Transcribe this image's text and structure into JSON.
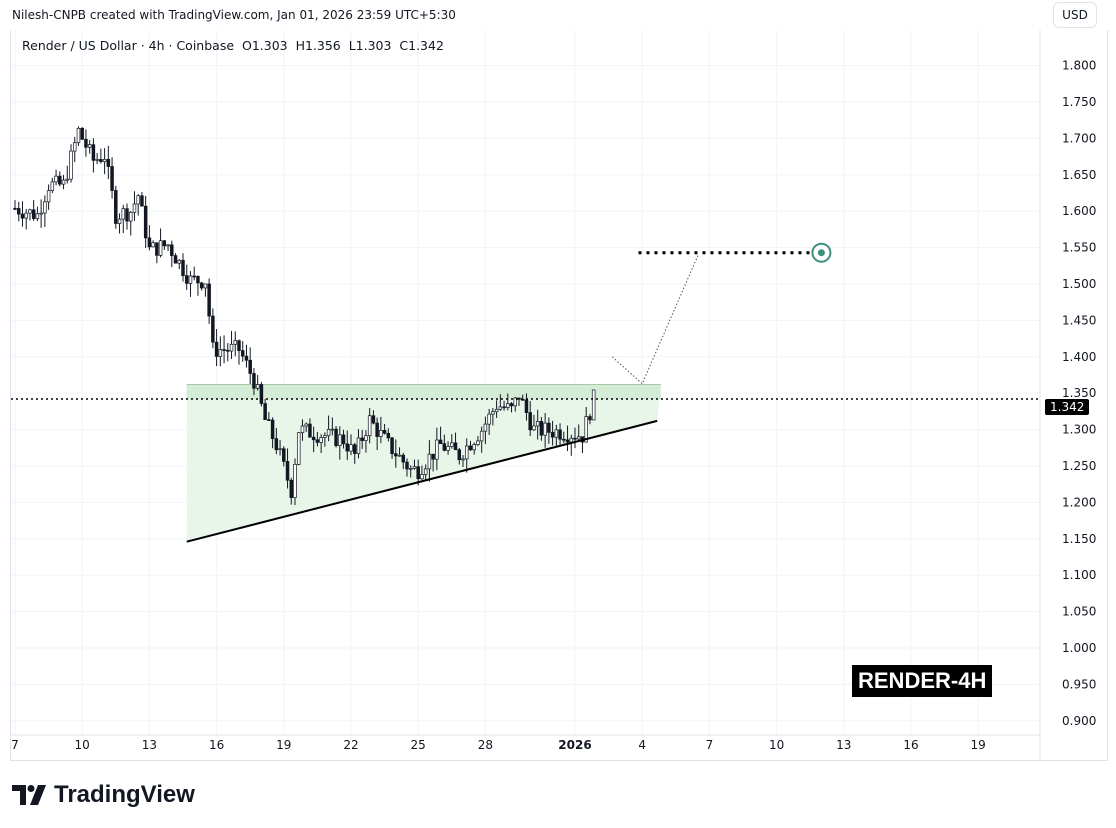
{
  "credit": "Nilesh-CNPB created with TradingView.com, Jan 01, 2026 23:59 UTC+5:30",
  "legend": {
    "symbol": "Render / US Dollar · 4h · Coinbase",
    "open": "O1.303",
    "high": "H1.356",
    "low": "L1.303",
    "close": "C1.342"
  },
  "currency_button": "USD",
  "badge": "RENDER-4H",
  "logo_text": "TradingView",
  "current_price_label": "1.342",
  "colors": {
    "candle": "#131722",
    "zone_fill": "#e8f5e9",
    "zone_top": "#d4ebd6",
    "target": "#3d8f80",
    "grid": "#f0f3fa"
  },
  "chart_data": {
    "type": "candlestick",
    "title": "Render / US Dollar · 4h · Coinbase",
    "ylim": [
      0.875,
      1.81
    ],
    "y_ticks": [
      "0.900",
      "0.950",
      "1.000",
      "1.050",
      "1.100",
      "1.150",
      "1.200",
      "1.250",
      "1.300",
      "1.350",
      "1.400",
      "1.450",
      "1.500",
      "1.550",
      "1.600",
      "1.650",
      "1.700",
      "1.750",
      "1.800"
    ],
    "x_ticks": [
      {
        "label": "7",
        "date": "2025-12-07"
      },
      {
        "label": "10",
        "date": "2025-12-10"
      },
      {
        "label": "13",
        "date": "2025-12-13"
      },
      {
        "label": "16",
        "date": "2025-12-16"
      },
      {
        "label": "19",
        "date": "2025-12-19"
      },
      {
        "label": "22",
        "date": "2025-12-22"
      },
      {
        "label": "25",
        "date": "2025-12-25"
      },
      {
        "label": "28",
        "date": "2025-12-28"
      },
      {
        "label": "2026",
        "date": "2026-01-01",
        "bold": true
      },
      {
        "label": "4",
        "date": "2026-01-04"
      },
      {
        "label": "7",
        "date": "2026-01-07"
      },
      {
        "label": "10",
        "date": "2026-01-10"
      },
      {
        "label": "13",
        "date": "2026-01-13"
      },
      {
        "label": "16",
        "date": "2026-01-16"
      },
      {
        "label": "19",
        "date": "2026-01-19"
      }
    ],
    "price_path": [
      [
        "2025-12-07T00",
        1.604
      ],
      [
        "2025-12-08T00",
        1.595
      ],
      [
        "2025-12-08T12",
        1.636
      ],
      [
        "2025-12-09T04",
        1.636
      ],
      [
        "2025-12-09T20",
        1.71
      ],
      [
        "2025-12-10T12",
        1.67
      ],
      [
        "2025-12-11T00",
        1.677
      ],
      [
        "2025-12-11T12",
        1.595
      ],
      [
        "2025-12-12T04",
        1.6
      ],
      [
        "2025-12-12T12",
        1.622
      ],
      [
        "2025-12-13T00",
        1.547
      ],
      [
        "2025-12-13T20",
        1.554
      ],
      [
        "2025-12-14T20",
        1.505
      ],
      [
        "2025-12-15T12",
        1.505
      ],
      [
        "2025-12-15T20",
        1.41
      ],
      [
        "2025-12-17T00",
        1.41
      ],
      [
        "2025-12-17T16",
        1.368
      ],
      [
        "2025-12-18T04",
        1.313
      ],
      [
        "2025-12-18T16",
        1.279
      ],
      [
        "2025-12-19T08",
        1.217
      ],
      [
        "2025-12-19T16",
        1.3
      ],
      [
        "2025-12-20T16",
        1.293
      ],
      [
        "2025-12-21T16",
        1.286
      ],
      [
        "2025-12-22T04",
        1.265
      ],
      [
        "2025-12-22T20",
        1.313
      ],
      [
        "2025-12-23T16",
        1.279
      ],
      [
        "2025-12-24T16",
        1.245
      ],
      [
        "2025-12-25T00",
        1.245
      ],
      [
        "2025-12-26T00",
        1.279
      ],
      [
        "2025-12-26T20",
        1.265
      ],
      [
        "2025-12-27T20",
        1.3
      ],
      [
        "2025-12-28T12",
        1.334
      ],
      [
        "2025-12-29T04",
        1.327
      ],
      [
        "2025-12-29T12",
        1.347
      ],
      [
        "2025-12-30T04",
        1.3
      ],
      [
        "2025-12-31T08",
        1.297
      ],
      [
        "2026-01-01T08",
        1.292
      ],
      [
        "2026-01-01T20",
        1.342
      ]
    ],
    "current_price": 1.342,
    "annotations": {
      "resistance_zone": {
        "from": "2025-12-14T16",
        "to": "2026-01-04T20",
        "top": 1.362
      },
      "trendline": [
        [
          "2025-12-14T16",
          1.146
        ],
        [
          "2026-01-04T16",
          1.312
        ]
      ],
      "target_level": {
        "price": 1.543,
        "from": "2026-01-03T20",
        "to": "2026-01-12T00"
      },
      "projection_path": [
        [
          "2026-01-02T16",
          1.4
        ],
        [
          "2026-01-04T00",
          1.363
        ],
        [
          "2026-01-06T12",
          1.54
        ]
      ]
    }
  }
}
